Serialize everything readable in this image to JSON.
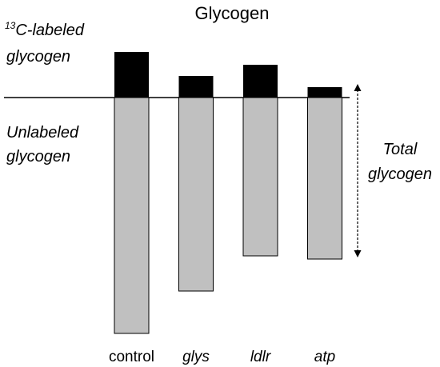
{
  "chart_data": {
    "type": "bar",
    "title": "Glycogen",
    "categories": [
      "control",
      "glys",
      "ldlr",
      "atp"
    ],
    "category_italic": [
      false,
      true,
      true,
      true
    ],
    "series": [
      {
        "name": "13C-labeled glycogen",
        "values": [
          57,
          27,
          41,
          13
        ],
        "color": "#000000"
      },
      {
        "name": "Unlabeled glycogen",
        "values": [
          295,
          242,
          198,
          202
        ],
        "color": "#c0c0c0"
      }
    ],
    "layout": "diverging from baseline: labeled above, unlabeled below",
    "annotation": "Total glycogen",
    "grid": false
  },
  "labels": {
    "labeled_sup": "13",
    "labeled_line1": "C-labeled",
    "labeled_line2": "glycogen",
    "unlabeled_line1": "Unlabeled",
    "unlabeled_line2": "glycogen",
    "total_line1": "Total",
    "total_line2": "glycogen"
  }
}
